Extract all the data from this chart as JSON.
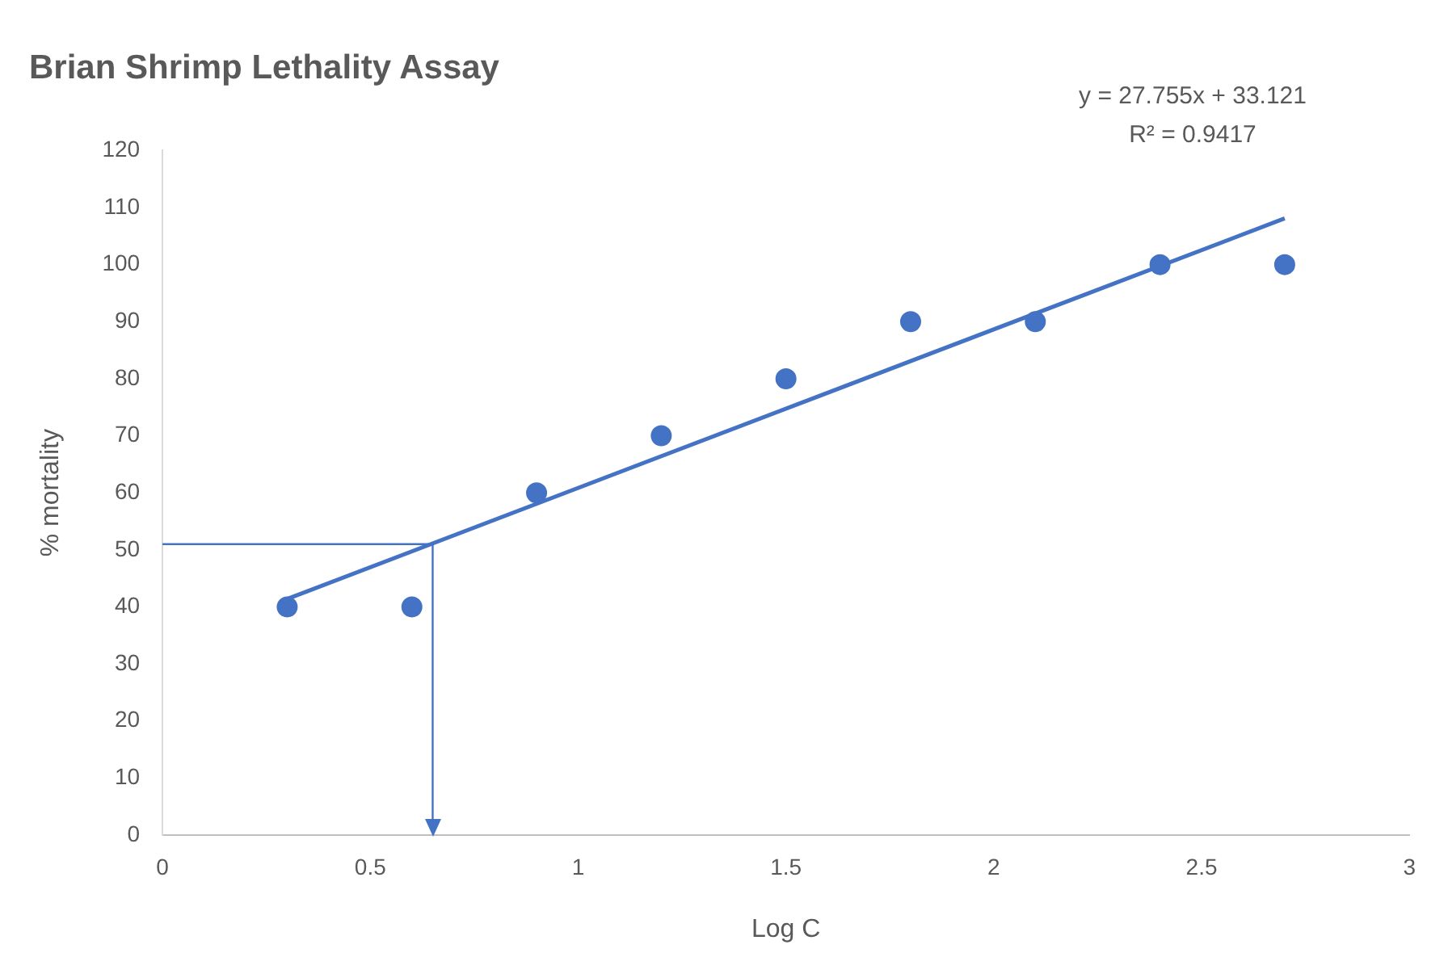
{
  "chart_data": {
    "type": "scatter",
    "title": "Brian Shrimp Lethality Assay",
    "xlabel": "Log C",
    "ylabel": "% mortality",
    "series": [
      {
        "color": "#4472c4",
        "x": [
          0.3,
          0.6,
          0.9,
          1.2,
          1.5,
          1.8,
          2.1,
          2.4,
          2.7
        ],
        "values": [
          40,
          40,
          60,
          70,
          80,
          90,
          90,
          100,
          100
        ]
      },
      {
        "type": "line",
        "color": "#4472c4",
        "x": [
          0.3,
          2.7
        ],
        "values": [
          41.4,
          108.1
        ],
        "marker": "none"
      }
    ],
    "xlim": [
      0,
      3
    ],
    "xticks": [
      0,
      0.5,
      1,
      1.5,
      2,
      2.5,
      3
    ],
    "ylim": [
      0,
      120
    ],
    "yticks": [
      0,
      10,
      20,
      30,
      40,
      50,
      60,
      70,
      80,
      90,
      100,
      110,
      120
    ],
    "ref_lines": [
      {
        "axis": "y",
        "value": 51,
        "color": "#4472c4"
      },
      {
        "axis": "x",
        "value": 0.65,
        "color": "#4472c4"
      }
    ],
    "annotations": [
      "y = 27.755x + 33.121",
      "R² = 0.9417"
    ],
    "grid": false,
    "legend": false,
    "marker": "circle"
  }
}
